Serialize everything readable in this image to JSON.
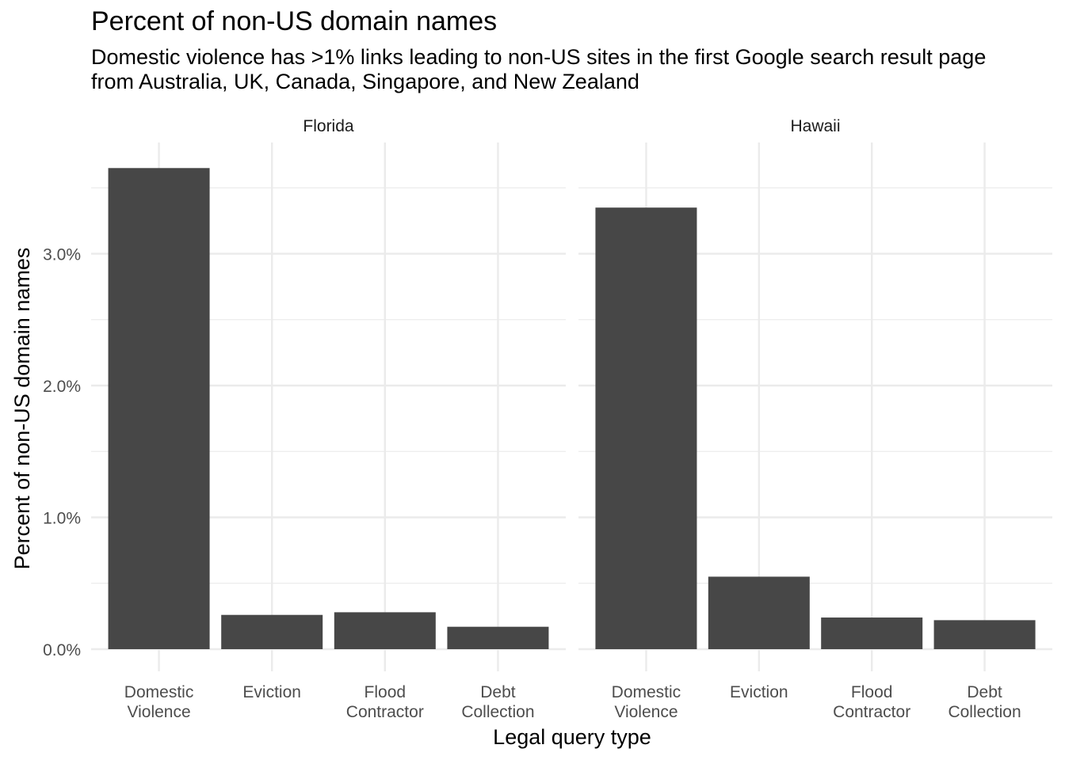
{
  "chart_data": {
    "type": "bar",
    "title": "Percent of non-US domain names",
    "subtitle_lines": [
      "Domestic violence has >1% links leading to non-US sites in the first Google search result page",
      "from Australia, UK, Canada, Singapore, and New Zealand"
    ],
    "xlabel": "Legal query type",
    "ylabel": "Percent of non-US domain names",
    "categories": [
      [
        "Domestic",
        "Violence"
      ],
      [
        "Eviction"
      ],
      [
        "Flood",
        "Contractor"
      ],
      [
        "Debt",
        "Collection"
      ]
    ],
    "ylim": [
      0,
      3.84
    ],
    "y_ticks": [
      0,
      1,
      2,
      3
    ],
    "y_tick_labels": [
      "0.0%",
      "1.0%",
      "2.0%",
      "3.0%"
    ],
    "grid": true,
    "bar_color": "#474747",
    "gridline_color": "#ebebeb",
    "facets": [
      {
        "name": "Florida",
        "values": [
          3.65,
          0.26,
          0.28,
          0.17
        ]
      },
      {
        "name": "Hawaii",
        "values": [
          3.35,
          0.55,
          0.24,
          0.22
        ]
      }
    ]
  }
}
